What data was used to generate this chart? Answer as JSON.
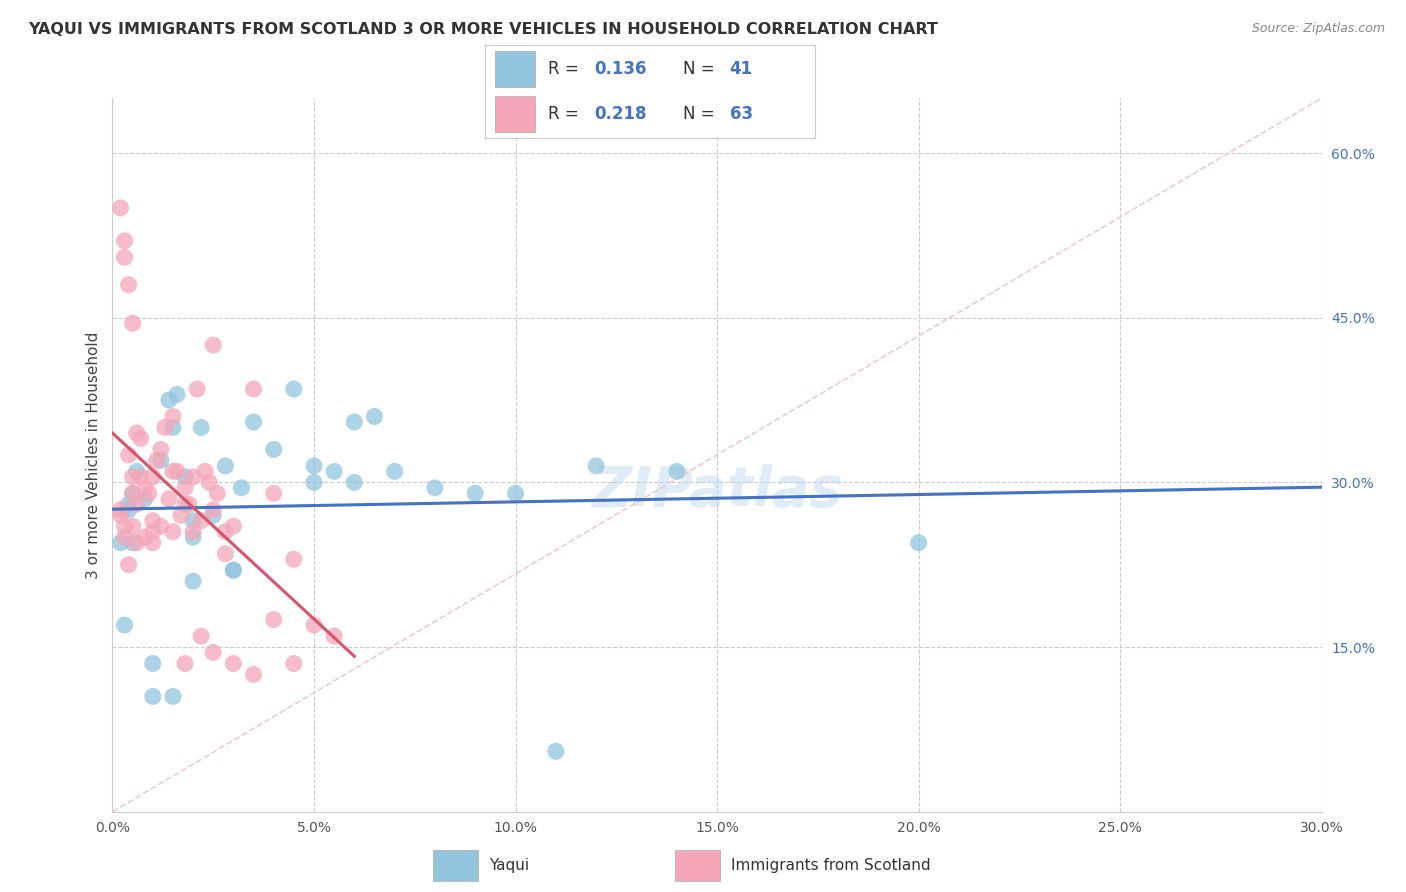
{
  "title": "YAQUI VS IMMIGRANTS FROM SCOTLAND 3 OR MORE VEHICLES IN HOUSEHOLD CORRELATION CHART",
  "source": "Source: ZipAtlas.com",
  "ylabel": "3 or more Vehicles in Household",
  "x_tick_vals": [
    0.0,
    5.0,
    10.0,
    15.0,
    20.0,
    25.0,
    30.0
  ],
  "y_tick_vals": [
    15.0,
    30.0,
    45.0,
    60.0
  ],
  "xlim": [
    0.0,
    30.0
  ],
  "ylim": [
    0.0,
    65.0
  ],
  "color_blue": "#92c5de",
  "color_pink": "#f4a6b8",
  "color_blue_line": "#4472c4",
  "color_pink_line": "#d9536a",
  "color_diag_line": "#f4b8c8",
  "watermark": "ZIPatlas",
  "yaqui_x": [
    0.4,
    0.5,
    0.6,
    0.8,
    1.0,
    1.2,
    1.4,
    1.5,
    1.6,
    1.8,
    2.0,
    2.0,
    2.2,
    2.5,
    2.8,
    3.0,
    3.2,
    3.5,
    4.0,
    4.5,
    5.0,
    5.5,
    6.0,
    6.5,
    7.0,
    8.0,
    9.0,
    10.0,
    11.0,
    12.0,
    14.0,
    0.3,
    0.5,
    1.0,
    1.5,
    2.0,
    3.0,
    5.0,
    6.0,
    20.0,
    0.2,
    0.4
  ],
  "yaqui_y": [
    28.0,
    29.0,
    31.0,
    28.5,
    13.5,
    32.0,
    37.5,
    35.0,
    38.0,
    30.5,
    25.0,
    26.5,
    35.0,
    27.0,
    31.5,
    22.0,
    29.5,
    35.5,
    33.0,
    38.5,
    31.5,
    31.0,
    30.0,
    36.0,
    31.0,
    29.5,
    29.0,
    29.0,
    5.5,
    31.5,
    31.0,
    17.0,
    24.5,
    10.5,
    10.5,
    21.0,
    22.0,
    30.0,
    35.5,
    24.5,
    24.5,
    27.5
  ],
  "scotland_x": [
    0.2,
    0.3,
    0.4,
    0.5,
    0.5,
    0.6,
    0.7,
    0.8,
    0.9,
    1.0,
    1.0,
    1.1,
    1.2,
    1.3,
    1.4,
    1.5,
    1.6,
    1.7,
    1.8,
    1.9,
    2.0,
    2.1,
    2.2,
    2.3,
    2.4,
    2.5,
    2.5,
    2.6,
    2.8,
    3.0,
    3.5,
    4.0,
    4.5,
    5.5,
    0.3,
    0.4,
    0.5,
    0.6,
    0.7,
    0.8,
    1.0,
    1.2,
    1.5,
    1.8,
    2.0,
    2.5,
    3.0,
    4.0,
    5.0,
    0.2,
    0.3,
    0.4,
    0.5,
    0.6,
    1.0,
    1.5,
    1.8,
    2.2,
    3.5,
    4.5,
    2.8,
    0.2,
    0.3
  ],
  "scotland_y": [
    27.5,
    26.0,
    22.5,
    30.5,
    26.0,
    28.0,
    30.5,
    29.5,
    29.0,
    30.5,
    26.5,
    32.0,
    33.0,
    35.0,
    28.5,
    36.0,
    31.0,
    27.0,
    29.5,
    28.0,
    30.5,
    38.5,
    26.5,
    31.0,
    30.0,
    27.5,
    42.5,
    29.0,
    25.5,
    26.0,
    38.5,
    29.0,
    13.5,
    16.0,
    52.0,
    48.0,
    44.5,
    34.5,
    34.0,
    25.0,
    25.5,
    26.0,
    31.0,
    28.0,
    25.5,
    14.5,
    13.5,
    17.5,
    17.0,
    55.0,
    50.5,
    32.5,
    29.0,
    24.5,
    24.5,
    25.5,
    13.5,
    16.0,
    12.5,
    23.0,
    23.5,
    27.0,
    25.0
  ]
}
